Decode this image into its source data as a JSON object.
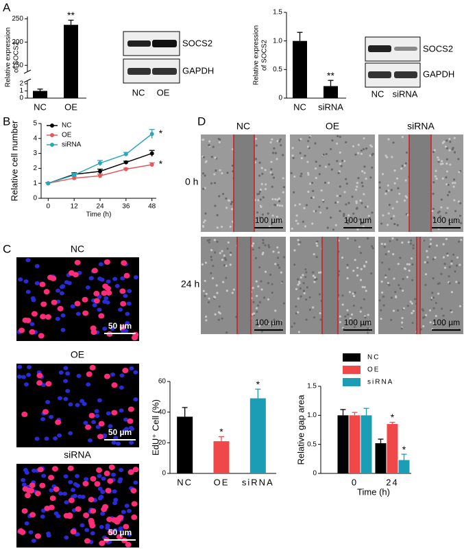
{
  "panels": [
    "A",
    "B",
    "C",
    "D"
  ],
  "blots": [
    {
      "proteins": [
        "SOCS2",
        "GAPDH"
      ],
      "lanes": [
        "NC",
        "OE"
      ]
    },
    {
      "proteins": [
        "SOCS2",
        "GAPDH"
      ],
      "lanes": [
        "NC",
        "siRNA"
      ]
    }
  ],
  "edu_images": {
    "labels": [
      "NC",
      "OE",
      "siRNA"
    ],
    "scale_bar": "50 µm"
  },
  "wound_images": {
    "columns": [
      "NC",
      "OE",
      "siRNA"
    ],
    "rows": [
      "0 h",
      "24 h"
    ],
    "scale_bar": "100 µm"
  },
  "chart_data": [
    {
      "type": "bar",
      "ylabel": [
        "Relative expression",
        "of SOCS2"
      ],
      "categories": [
        "NC",
        "OE"
      ],
      "values": [
        1,
        237
      ],
      "errors": [
        0.25,
        10
      ],
      "significance": [
        null,
        "**"
      ],
      "color": "#000000",
      "ylim": [
        0,
        255
      ],
      "ybreak": [
        2,
        140
      ],
      "yticks": [
        0,
        1,
        2,
        150,
        200,
        250
      ]
    },
    {
      "type": "bar",
      "ylabel": [
        "Relative expression",
        "of SOCS2"
      ],
      "categories": [
        "NC",
        "siRNA"
      ],
      "values": [
        1.0,
        0.21
      ],
      "errors": [
        0.15,
        0.1
      ],
      "significance": [
        null,
        "**"
      ],
      "color": "#000000",
      "ylim": [
        0,
        1.5
      ],
      "yticks": [
        0,
        0.5,
        {
          "value": 1,
          "label": "1.0"
        },
        1.5
      ]
    },
    {
      "type": "line",
      "xlabel": "Time (h)",
      "ylabel": "Relative cell number",
      "x": [
        0,
        12,
        24,
        36,
        48
      ],
      "xlim": [
        -2,
        50
      ],
      "xticks": [
        0,
        12,
        24,
        36,
        48
      ],
      "ylim": [
        0,
        5
      ],
      "yticks": [
        0,
        1,
        2,
        3,
        4,
        5
      ],
      "legend": "top-left",
      "series": [
        {
          "name": "NC",
          "color": "#000000",
          "values": [
            1,
            1.6,
            1.8,
            2.4,
            3.0
          ],
          "errors": [
            0.05,
            0.1,
            0.15,
            0.08,
            0.2
          ],
          "significance": [
            null,
            null,
            null,
            null,
            null
          ]
        },
        {
          "name": "OE",
          "color": "#e8555a",
          "values": [
            1,
            1.35,
            1.5,
            1.95,
            2.25
          ],
          "errors": [
            0.05,
            0.12,
            0.12,
            0.06,
            0.12
          ],
          "significance": [
            null,
            null,
            null,
            null,
            "*"
          ]
        },
        {
          "name": "siRNA",
          "color": "#2aa8b8",
          "values": [
            1,
            1.55,
            2.35,
            2.95,
            4.3
          ],
          "errors": [
            0.05,
            0.12,
            0.18,
            0.12,
            0.3
          ],
          "significance": [
            null,
            null,
            null,
            null,
            "*"
          ]
        }
      ]
    },
    {
      "type": "bar",
      "ylabel": "EdU⁺ Cell (%)",
      "categories": [
        "NC",
        "OE",
        "siRNA"
      ],
      "values": [
        37,
        21,
        49
      ],
      "errors": [
        6,
        3,
        6
      ],
      "significance": [
        null,
        "*",
        "*"
      ],
      "colors": [
        "#000000",
        "#f04848",
        "#1b9db5"
      ],
      "ylim": [
        0,
        60
      ],
      "yticks": [
        0,
        20,
        40,
        60
      ]
    },
    {
      "type": "bar",
      "xlabel": "Time (h)",
      "ylabel": "Relative gap area",
      "categories": [
        "0",
        "24"
      ],
      "ylim": [
        0,
        1.5
      ],
      "yticks": [
        0,
        0.5,
        {
          "value": 1,
          "label": "1.0"
        },
        1.5
      ],
      "legend": "top",
      "series": [
        {
          "name": "NC",
          "color": "#000000",
          "values": [
            1.0,
            0.52
          ],
          "errors": [
            0.1,
            0.07
          ],
          "significance": [
            null,
            null
          ]
        },
        {
          "name": "OE",
          "color": "#f04848",
          "values": [
            1.0,
            0.85
          ],
          "errors": [
            0.05,
            0.03
          ],
          "significance": [
            null,
            "*"
          ]
        },
        {
          "name": "siRNA",
          "color": "#1b9db5",
          "values": [
            1.0,
            0.23
          ],
          "errors": [
            0.12,
            0.1
          ],
          "significance": [
            null,
            "*"
          ]
        }
      ]
    }
  ]
}
